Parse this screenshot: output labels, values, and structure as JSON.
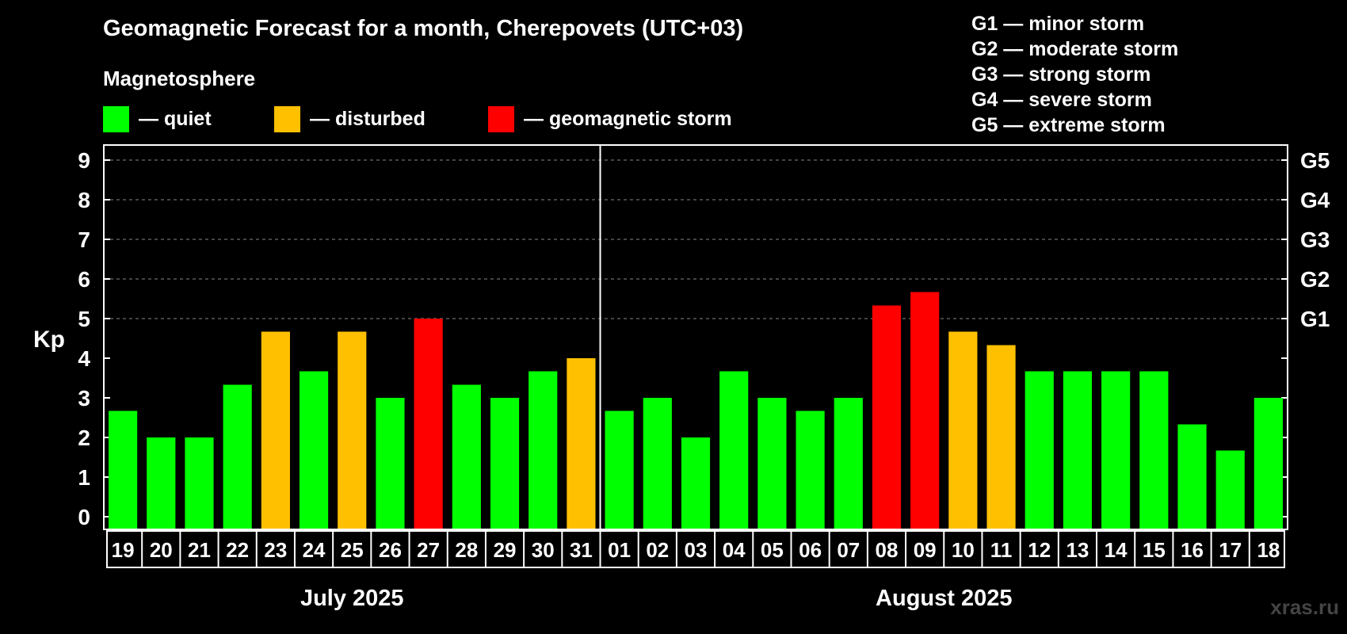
{
  "chart_data": {
    "type": "bar",
    "title": "Geomagnetic Forecast for a month, Cherepovets (UTC+03)",
    "ylabel": "Kp",
    "ylim": [
      0,
      9
    ],
    "y_ticks": [
      0,
      1,
      2,
      3,
      4,
      5,
      6,
      7,
      8,
      9
    ],
    "right_axis_labels": [
      {
        "kp": 5,
        "label": "G1"
      },
      {
        "kp": 6,
        "label": "G2"
      },
      {
        "kp": 7,
        "label": "G3"
      },
      {
        "kp": 8,
        "label": "G4"
      },
      {
        "kp": 9,
        "label": "G5"
      }
    ],
    "months": [
      {
        "label": "July 2025",
        "days": [
          "19",
          "20",
          "21",
          "22",
          "23",
          "24",
          "25",
          "26",
          "27",
          "28",
          "29",
          "30",
          "31"
        ]
      },
      {
        "label": "August 2025",
        "days": [
          "01",
          "02",
          "03",
          "04",
          "05",
          "06",
          "07",
          "08",
          "09",
          "10",
          "11",
          "12",
          "13",
          "14",
          "15",
          "16",
          "17",
          "18"
        ]
      }
    ],
    "categories": [
      "19",
      "20",
      "21",
      "22",
      "23",
      "24",
      "25",
      "26",
      "27",
      "28",
      "29",
      "30",
      "31",
      "01",
      "02",
      "03",
      "04",
      "05",
      "06",
      "07",
      "08",
      "09",
      "10",
      "11",
      "12",
      "13",
      "14",
      "15",
      "16",
      "17",
      "18"
    ],
    "values": [
      2.67,
      2.0,
      2.0,
      3.33,
      4.67,
      3.67,
      4.67,
      3.0,
      5.0,
      3.33,
      3.0,
      3.67,
      4.0,
      2.67,
      3.0,
      2.0,
      3.67,
      3.0,
      2.67,
      3.0,
      5.33,
      5.67,
      4.67,
      4.33,
      3.67,
      3.67,
      3.67,
      3.67,
      2.33,
      1.67,
      3.0
    ],
    "status": [
      "quiet",
      "quiet",
      "quiet",
      "quiet",
      "disturbed",
      "quiet",
      "disturbed",
      "quiet",
      "storm",
      "quiet",
      "quiet",
      "quiet",
      "disturbed",
      "quiet",
      "quiet",
      "quiet",
      "quiet",
      "quiet",
      "quiet",
      "quiet",
      "storm",
      "storm",
      "disturbed",
      "disturbed",
      "quiet",
      "quiet",
      "quiet",
      "quiet",
      "quiet",
      "quiet",
      "quiet"
    ],
    "colors": {
      "quiet": "#00ff00",
      "disturbed": "#ffc000",
      "storm": "#ff0000"
    }
  },
  "legend": {
    "title": "Magnetosphere",
    "items": [
      {
        "label": "— quiet",
        "color": "#00ff00"
      },
      {
        "label": "— disturbed",
        "color": "#ffc000"
      },
      {
        "label": "— geomagnetic storm",
        "color": "#ff0000"
      }
    ]
  },
  "g_scale": [
    "G1 — minor storm",
    "G2 — moderate storm",
    "G3 — strong storm",
    "G4 — severe storm",
    "G5 — extreme storm"
  ],
  "watermark": "xras.ru"
}
